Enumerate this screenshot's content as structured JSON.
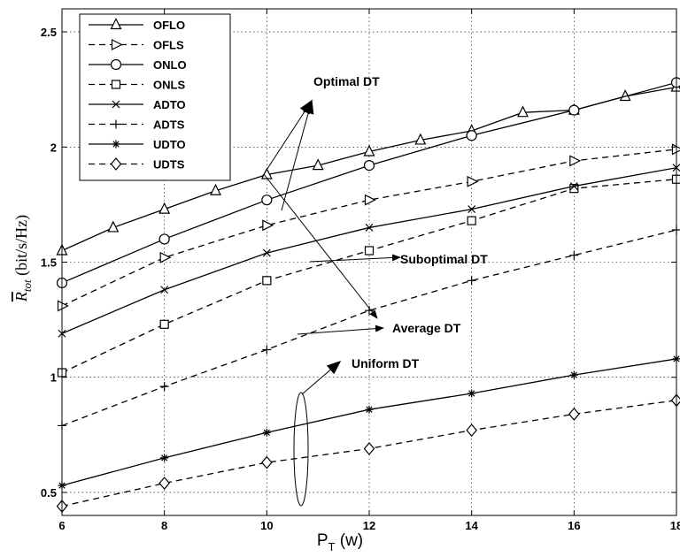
{
  "chart_data": {
    "type": "line",
    "xlabel_main": "P",
    "xlabel_sub": "T",
    "xlabel_unit": " (w)",
    "ylabel_main": "R",
    "ylabel_sub": "tot",
    "ylabel_unit": " (bit/s/Hz)",
    "xlim": [
      6,
      18
    ],
    "ylim": [
      0.4,
      2.6
    ],
    "xticks": [
      6,
      8,
      10,
      12,
      14,
      16,
      18
    ],
    "yticks": [
      0.5,
      1,
      1.5,
      2,
      2.5
    ],
    "ytick_labels": [
      "0.5",
      "1",
      "1.5",
      "2",
      "2.5"
    ],
    "grid": true,
    "legend_position": "top-left",
    "series": [
      {
        "name": "OFLO",
        "style": "solid",
        "marker": "triangle-up",
        "x": [
          6,
          7,
          8,
          9,
          10,
          11,
          12,
          13,
          14,
          15,
          16,
          17,
          18
        ],
        "y": [
          1.55,
          1.65,
          1.73,
          1.81,
          1.88,
          1.92,
          1.98,
          2.03,
          2.07,
          2.15,
          2.16,
          2.22,
          2.26
        ]
      },
      {
        "name": "OFLS",
        "style": "dashed",
        "marker": "triangle-right",
        "x": [
          6,
          8,
          10,
          12,
          14,
          16,
          18
        ],
        "y": [
          1.31,
          1.52,
          1.66,
          1.77,
          1.85,
          1.94,
          1.99
        ]
      },
      {
        "name": "ONLO",
        "style": "solid",
        "marker": "circle",
        "x": [
          6,
          8,
          10,
          12,
          14,
          16,
          18
        ],
        "y": [
          1.41,
          1.6,
          1.77,
          1.92,
          2.05,
          2.16,
          2.28
        ]
      },
      {
        "name": "ONLS",
        "style": "dashed",
        "marker": "square",
        "x": [
          6,
          8,
          10,
          12,
          14,
          16,
          18
        ],
        "y": [
          1.02,
          1.23,
          1.42,
          1.55,
          1.68,
          1.82,
          1.86
        ]
      },
      {
        "name": "ADTO",
        "style": "solid",
        "marker": "x",
        "x": [
          6,
          8,
          10,
          12,
          14,
          16,
          18
        ],
        "y": [
          1.19,
          1.38,
          1.54,
          1.65,
          1.73,
          1.83,
          1.91
        ]
      },
      {
        "name": "ADTS",
        "style": "dashed",
        "marker": "plus",
        "x": [
          6,
          8,
          10,
          12,
          14,
          16,
          18
        ],
        "y": [
          0.79,
          0.96,
          1.12,
          1.29,
          1.42,
          1.53,
          1.64
        ]
      },
      {
        "name": "UDTO",
        "style": "solid",
        "marker": "asterisk",
        "x": [
          6,
          8,
          10,
          12,
          14,
          16,
          18
        ],
        "y": [
          0.53,
          0.65,
          0.76,
          0.86,
          0.93,
          1.01,
          1.08
        ]
      },
      {
        "name": "UDTS",
        "style": "dashed",
        "marker": "diamond",
        "x": [
          6,
          8,
          10,
          12,
          14,
          16,
          18
        ],
        "y": [
          0.44,
          0.54,
          0.63,
          0.69,
          0.77,
          0.84,
          0.9
        ]
      }
    ],
    "annotations": [
      {
        "text": "Optimal DT"
      },
      {
        "text": "Suboptimal DT"
      },
      {
        "text": "Average DT"
      },
      {
        "text": "Uniform DT"
      }
    ]
  }
}
